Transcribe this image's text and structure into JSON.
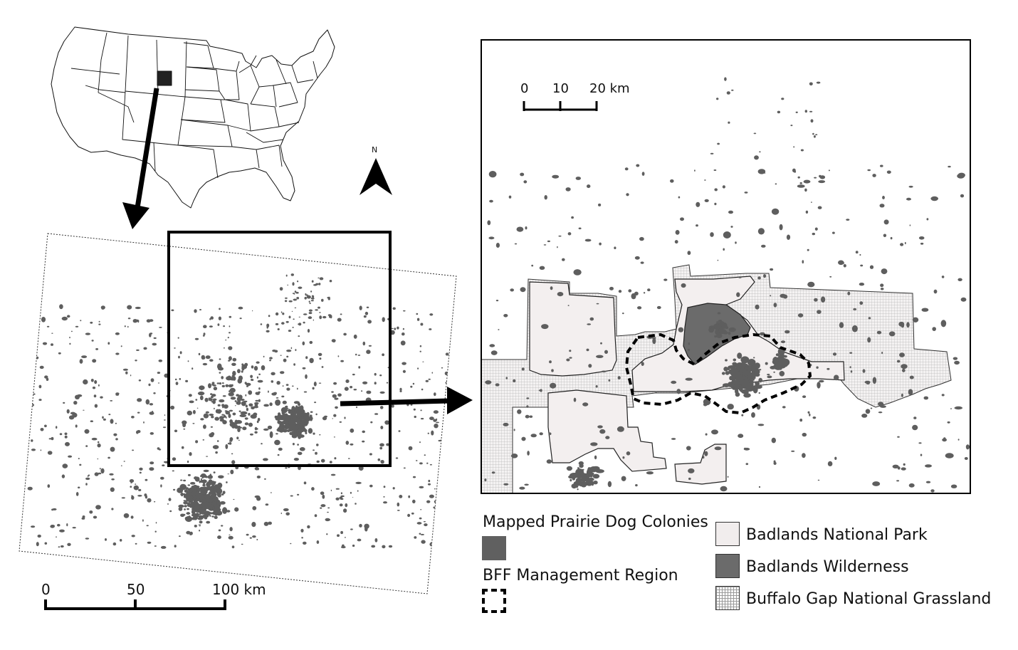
{
  "colors": {
    "colony": "#606060",
    "park_fill": "#f1eded",
    "wilderness_fill": "#6b6b6b",
    "grassland_line": "#bdbdbd",
    "outline": "#111111",
    "locator_marker": "#222222"
  },
  "icons": {
    "north_arrow": "north-arrow-icon",
    "direction_arrows": "arrow-icon"
  },
  "north_arrow": {
    "label": "N"
  },
  "overview_scale": {
    "ticks": [
      "0",
      "50",
      "100 km"
    ]
  },
  "detail_scale": {
    "ticks": [
      "0",
      "10",
      "20 km"
    ]
  },
  "legend": {
    "colonies": "Mapped Prairie Dog Colonies",
    "bff_region": "BFF Management Region",
    "park": "Badlands National Park",
    "wilderness": "Badlands Wilderness",
    "grassland": "Buffalo Gap National Grassland"
  }
}
